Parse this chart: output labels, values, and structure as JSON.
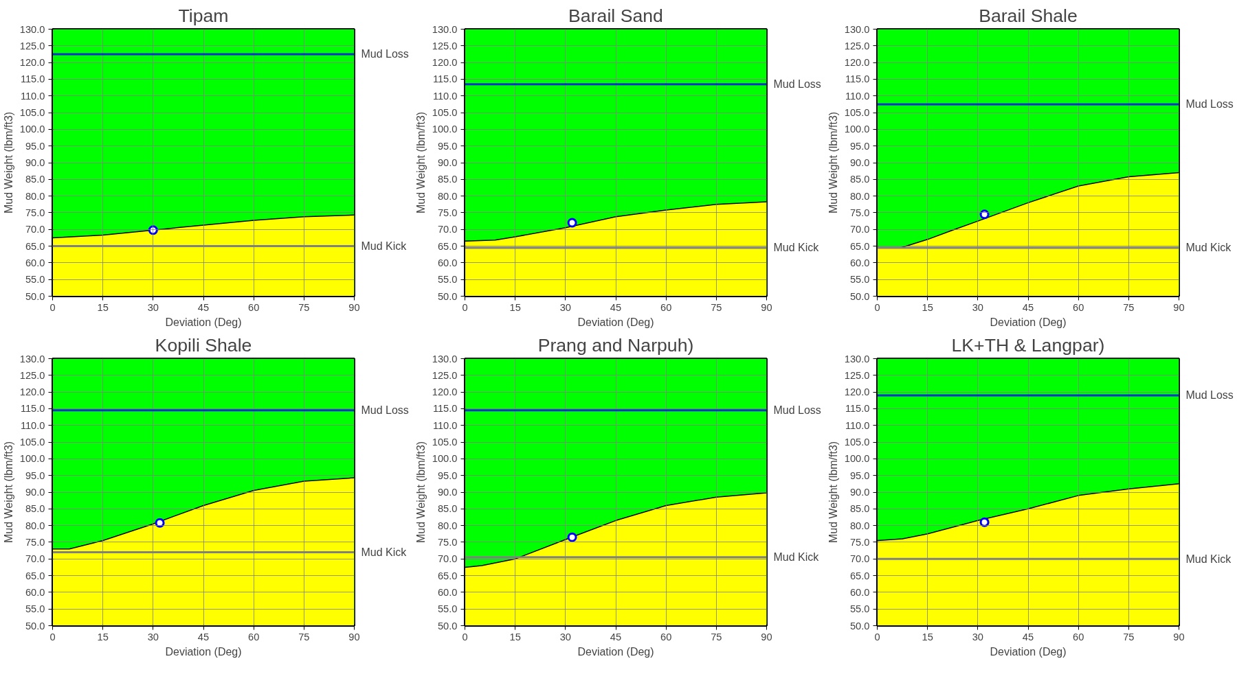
{
  "chart_data": [
    {
      "type": "area",
      "title": "Tipam",
      "xlabel": "Deviation (Deg)",
      "ylabel": "Mud Weight (lbm/ft3)",
      "xlim": [
        0,
        90
      ],
      "ylim": [
        50,
        130
      ],
      "xticks": [
        0,
        15,
        30,
        45,
        60,
        75,
        90
      ],
      "yticks": [
        {
          "value": 50,
          "label": "50.0"
        },
        {
          "value": 55,
          "label": "55.0"
        },
        {
          "value": 60,
          "label": "60.0"
        },
        {
          "value": 65,
          "label": "65.0"
        },
        {
          "value": 70,
          "label": "70.0"
        },
        {
          "value": 75,
          "label": "75.0"
        },
        {
          "value": 80,
          "label": "80.0"
        },
        {
          "value": 85,
          "label": "85.0"
        },
        {
          "value": 90,
          "label": "90.0"
        },
        {
          "value": 95,
          "label": "95.0"
        },
        {
          "value": 100,
          "label": "100.0"
        },
        {
          "value": 105,
          "label": "105.0"
        },
        {
          "value": 110,
          "label": "110.0"
        },
        {
          "value": 115,
          "label": "115.0"
        },
        {
          "value": 120,
          "label": "120.0"
        },
        {
          "value": 125,
          "label": "125.0"
        },
        {
          "value": 130,
          "label": "130.0"
        }
      ],
      "grid": true,
      "bands": [
        {
          "axis": "y",
          "from": 50,
          "to": 130,
          "color": "#00ff00"
        }
      ],
      "series": [
        {
          "color": "#ffff00",
          "x": [
            0,
            15,
            30,
            45,
            60,
            75,
            90
          ],
          "values": [
            67.5,
            68.3,
            69.8,
            71.3,
            72.7,
            73.8,
            74.3
          ]
        },
        {
          "type": "scatter",
          "color": "#0000ff",
          "marker": "circle",
          "x": [
            30
          ],
          "values": [
            69.8
          ]
        }
      ],
      "ref_lines": [
        {
          "axis": "y",
          "value": 122.5,
          "label": "Mud Loss",
          "color": "#0033cc"
        },
        {
          "axis": "y",
          "value": 65,
          "label": "Mud Kick",
          "color": "#808080"
        }
      ]
    },
    {
      "type": "area",
      "title": "Barail Sand",
      "xlabel": "Deviation (Deg)",
      "ylabel": "Mud Weight (lbm/ft3)",
      "xlim": [
        0,
        90
      ],
      "ylim": [
        50,
        130
      ],
      "xticks": [
        0,
        15,
        30,
        45,
        60,
        75,
        90
      ],
      "yticks": [
        {
          "value": 50,
          "label": "50.0"
        },
        {
          "value": 55,
          "label": "55.0"
        },
        {
          "value": 60,
          "label": "60.0"
        },
        {
          "value": 65,
          "label": "65.0"
        },
        {
          "value": 70,
          "label": "70.0"
        },
        {
          "value": 75,
          "label": "75.0"
        },
        {
          "value": 80,
          "label": "80.0"
        },
        {
          "value": 85,
          "label": "85.0"
        },
        {
          "value": 90,
          "label": "90.0"
        },
        {
          "value": 95,
          "label": "95.0"
        },
        {
          "value": 100,
          "label": "100.0"
        },
        {
          "value": 105,
          "label": "105.0"
        },
        {
          "value": 110,
          "label": "110.0"
        },
        {
          "value": 115,
          "label": "115.0"
        },
        {
          "value": 120,
          "label": "120.0"
        },
        {
          "value": 125,
          "label": "125.0"
        },
        {
          "value": 130,
          "label": "130.0"
        }
      ],
      "grid": true,
      "bands": [
        {
          "axis": "y",
          "from": 50,
          "to": 130,
          "color": "#00ff00"
        }
      ],
      "series": [
        {
          "color": "#ffff00",
          "x": [
            0,
            9,
            15,
            30,
            45,
            60,
            75,
            90
          ],
          "values": [
            66.5,
            66.8,
            67.8,
            70.5,
            73.8,
            75.8,
            77.5,
            78.3
          ]
        },
        {
          "type": "scatter",
          "color": "#0000ff",
          "marker": "circle",
          "x": [
            32
          ],
          "values": [
            72
          ]
        }
      ],
      "ref_lines": [
        {
          "axis": "y",
          "value": 113.5,
          "label": "Mud Loss",
          "color": "#0033cc"
        },
        {
          "axis": "y",
          "value": 64.5,
          "label": "Mud Kick",
          "color": "#808080"
        }
      ]
    },
    {
      "type": "area",
      "title": "Barail Shale",
      "xlabel": "Deviation (Deg)",
      "ylabel": "Mud Weight (lbm/ft3)",
      "xlim": [
        0,
        90
      ],
      "ylim": [
        50,
        130
      ],
      "xticks": [
        0,
        15,
        30,
        45,
        60,
        75,
        90
      ],
      "yticks": [
        {
          "value": 50,
          "label": "50.0"
        },
        {
          "value": 55,
          "label": "55.0"
        },
        {
          "value": 60,
          "label": "60.0"
        },
        {
          "value": 65,
          "label": "65.0"
        },
        {
          "value": 70,
          "label": "70.0"
        },
        {
          "value": 75,
          "label": "75.0"
        },
        {
          "value": 80,
          "label": "80.0"
        },
        {
          "value": 85,
          "label": "85.0"
        },
        {
          "value": 90,
          "label": "90.0"
        },
        {
          "value": 95,
          "label": "95.0"
        },
        {
          "value": 100,
          "label": "100.0"
        },
        {
          "value": 105,
          "label": "105.0"
        },
        {
          "value": 110,
          "label": "110.0"
        },
        {
          "value": 115,
          "label": "115.0"
        },
        {
          "value": 120,
          "label": "120.0"
        },
        {
          "value": 125,
          "label": "125.0"
        },
        {
          "value": 130,
          "label": "130.0"
        }
      ],
      "grid": true,
      "bands": [
        {
          "axis": "y",
          "from": 50,
          "to": 130,
          "color": "#00ff00"
        }
      ],
      "series": [
        {
          "color": "#ffff00",
          "x": [
            0,
            7,
            15,
            22.5,
            30,
            45,
            60,
            75,
            90
          ],
          "values": [
            64.5,
            64.5,
            67,
            69.8,
            72.5,
            78,
            83,
            85.8,
            87
          ]
        },
        {
          "type": "scatter",
          "color": "#0000ff",
          "marker": "circle",
          "x": [
            32
          ],
          "values": [
            74.5
          ]
        }
      ],
      "ref_lines": [
        {
          "axis": "y",
          "value": 107.5,
          "label": "Mud Loss",
          "color": "#0033cc"
        },
        {
          "axis": "y",
          "value": 64.5,
          "label": "Mud Kick",
          "color": "#808080"
        }
      ]
    },
    {
      "type": "area",
      "title": "Kopili Shale",
      "xlabel": "Deviation (Deg)",
      "ylabel": "Mud Weight (lbm/ft3)",
      "xlim": [
        0,
        90
      ],
      "ylim": [
        50,
        130
      ],
      "xticks": [
        0,
        15,
        30,
        45,
        60,
        75,
        90
      ],
      "yticks": [
        {
          "value": 50,
          "label": "50.0"
        },
        {
          "value": 55,
          "label": "55.0"
        },
        {
          "value": 60,
          "label": "60.0"
        },
        {
          "value": 65,
          "label": "65.0"
        },
        {
          "value": 70,
          "label": "70.0"
        },
        {
          "value": 75,
          "label": "75.0"
        },
        {
          "value": 80,
          "label": "80.0"
        },
        {
          "value": 85,
          "label": "85.0"
        },
        {
          "value": 90,
          "label": "90.0"
        },
        {
          "value": 95,
          "label": "95.0"
        },
        {
          "value": 100,
          "label": "100.0"
        },
        {
          "value": 105,
          "label": "105.0"
        },
        {
          "value": 110,
          "label": "110.0"
        },
        {
          "value": 115,
          "label": "115.0"
        },
        {
          "value": 120,
          "label": "120.0"
        },
        {
          "value": 125,
          "label": "125.0"
        },
        {
          "value": 130,
          "label": "130.0"
        }
      ],
      "grid": true,
      "bands": [
        {
          "axis": "y",
          "from": 50,
          "to": 130,
          "color": "#00ff00"
        }
      ],
      "series": [
        {
          "color": "#ffff00",
          "x": [
            0,
            5,
            15,
            30,
            45,
            60,
            75,
            90
          ],
          "values": [
            73,
            73,
            75.5,
            80.5,
            86,
            90.5,
            93.3,
            94.3
          ]
        },
        {
          "type": "scatter",
          "color": "#0000ff",
          "marker": "circle",
          "x": [
            32
          ],
          "values": [
            80.8
          ]
        }
      ],
      "ref_lines": [
        {
          "axis": "y",
          "value": 114.5,
          "label": "Mud Loss",
          "color": "#0033cc"
        },
        {
          "axis": "y",
          "value": 72,
          "label": "Mud Kick",
          "color": "#808080"
        }
      ]
    },
    {
      "type": "area",
      "title": "Prang and Narpuh)",
      "xlabel": "Deviation (Deg)",
      "ylabel": "Mud Weight (lbm/ft3)",
      "xlim": [
        0,
        90
      ],
      "ylim": [
        50,
        130
      ],
      "xticks": [
        0,
        15,
        30,
        45,
        60,
        75,
        90
      ],
      "yticks": [
        {
          "value": 50,
          "label": "50.0"
        },
        {
          "value": 55,
          "label": "55.0"
        },
        {
          "value": 60,
          "label": "60.0"
        },
        {
          "value": 65,
          "label": "65.0"
        },
        {
          "value": 70,
          "label": "70.0"
        },
        {
          "value": 75,
          "label": "75.0"
        },
        {
          "value": 80,
          "label": "80.0"
        },
        {
          "value": 85,
          "label": "85.0"
        },
        {
          "value": 90,
          "label": "90.0"
        },
        {
          "value": 95,
          "label": "95.0"
        },
        {
          "value": 100,
          "label": "100.0"
        },
        {
          "value": 105,
          "label": "105.0"
        },
        {
          "value": 110,
          "label": "110.0"
        },
        {
          "value": 115,
          "label": "115.0"
        },
        {
          "value": 120,
          "label": "120.0"
        },
        {
          "value": 125,
          "label": "125.0"
        },
        {
          "value": 130,
          "label": "130.0"
        }
      ],
      "grid": true,
      "bands": [
        {
          "axis": "y",
          "from": 50,
          "to": 130,
          "color": "#00ff00"
        }
      ],
      "series": [
        {
          "color": "#ffff00",
          "x": [
            0,
            5,
            15,
            30,
            45,
            60,
            75,
            90
          ],
          "values": [
            67.5,
            68,
            70,
            75.8,
            81.5,
            86,
            88.5,
            89.8
          ]
        },
        {
          "type": "scatter",
          "color": "#0000ff",
          "marker": "circle",
          "x": [
            32
          ],
          "values": [
            76.5
          ]
        }
      ],
      "ref_lines": [
        {
          "axis": "y",
          "value": 114.5,
          "label": "Mud Loss",
          "color": "#0033cc"
        },
        {
          "axis": "y",
          "value": 70.5,
          "label": "Mud Kick",
          "color": "#808080"
        }
      ]
    },
    {
      "type": "area",
      "title": "LK+TH & Langpar)",
      "xlabel": "Deviation (Deg)",
      "ylabel": "Mud Weight (lbm/ft3)",
      "xlim": [
        0,
        90
      ],
      "ylim": [
        50,
        130
      ],
      "xticks": [
        0,
        15,
        30,
        45,
        60,
        75,
        90
      ],
      "yticks": [
        {
          "value": 50,
          "label": "50.0"
        },
        {
          "value": 55,
          "label": "55.0"
        },
        {
          "value": 60,
          "label": "60.0"
        },
        {
          "value": 65,
          "label": "65.0"
        },
        {
          "value": 70,
          "label": "70.0"
        },
        {
          "value": 75,
          "label": "75.0"
        },
        {
          "value": 80,
          "label": "80.0"
        },
        {
          "value": 85,
          "label": "85.0"
        },
        {
          "value": 90,
          "label": "90.0"
        },
        {
          "value": 95,
          "label": "95.0"
        },
        {
          "value": 100,
          "label": "100.0"
        },
        {
          "value": 105,
          "label": "105.0"
        },
        {
          "value": 110,
          "label": "110.0"
        },
        {
          "value": 115,
          "label": "115.0"
        },
        {
          "value": 120,
          "label": "120.0"
        },
        {
          "value": 125,
          "label": "125.0"
        },
        {
          "value": 130,
          "label": "130.0"
        }
      ],
      "grid": true,
      "bands": [
        {
          "axis": "y",
          "from": 50,
          "to": 130,
          "color": "#00ff00"
        }
      ],
      "series": [
        {
          "color": "#ffff00",
          "x": [
            0,
            7.5,
            15,
            30,
            45,
            60,
            75,
            90
          ],
          "values": [
            75.5,
            76,
            77.5,
            81.5,
            85,
            89,
            91,
            92.5
          ]
        },
        {
          "type": "scatter",
          "color": "#0000ff",
          "marker": "circle",
          "x": [
            32
          ],
          "values": [
            81
          ]
        }
      ],
      "ref_lines": [
        {
          "axis": "y",
          "value": 119,
          "label": "Mud Loss",
          "color": "#0033cc"
        },
        {
          "axis": "y",
          "value": 70,
          "label": "Mud Kick",
          "color": "#808080"
        }
      ]
    }
  ]
}
